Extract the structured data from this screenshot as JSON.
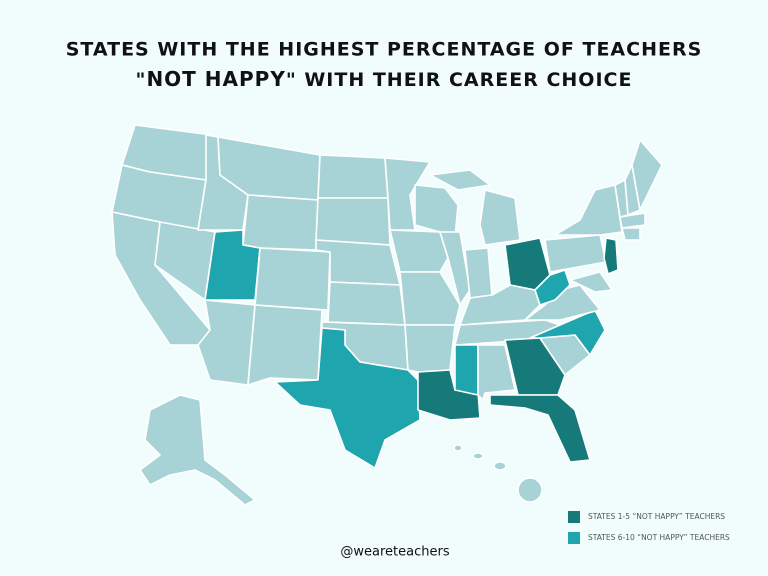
{
  "title": {
    "line_1": "STATES WITH THE HIGHEST PERCENTAGE OF TEACHERS",
    "line_2": [
      "\"",
      "NOT HAPPY",
      "\" WITH THEIR CAREER CHOICE"
    ]
  },
  "map_color": "#a7d3d6",
  "legend": [
    {
      "label": "STATES 1-5 “NOT HAPPY” TEACHERS",
      "color": "#167a7b"
    },
    {
      "label": "STATES 6-10 “NOT HAPPY” TEACHERS",
      "color": "#1fa5ae"
    }
  ],
  "handle": "@weareteachers"
}
